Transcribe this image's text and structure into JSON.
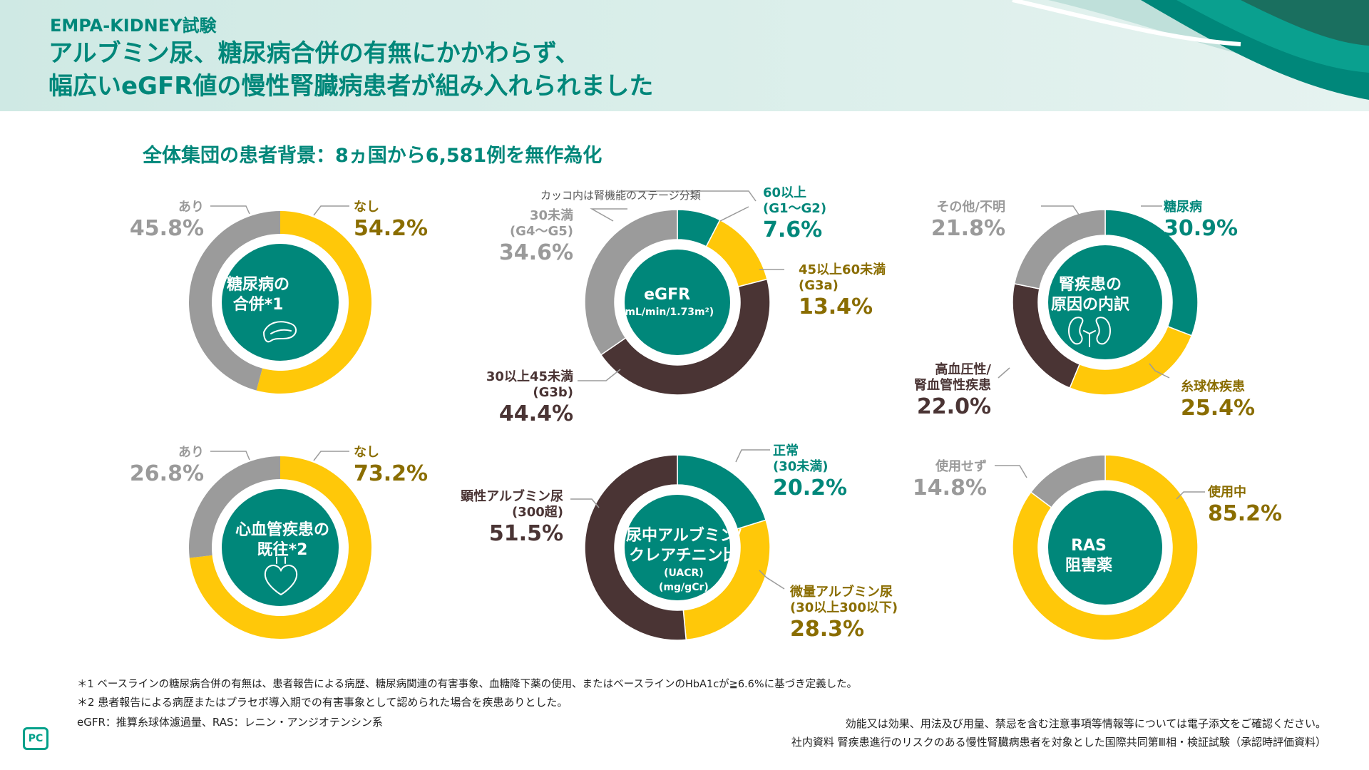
{
  "header": {
    "trial": "EMPA-KIDNEY試験",
    "headline_line1": "アルブミン尿、糖尿病合併の有無にかかわらず、",
    "headline_line2": "幅広いeGFR値の慢性腎臓病患者が組み入れられました"
  },
  "subtitle": "全体集団の患者背景：8ヵ国から6,581例を無作為化",
  "colors": {
    "teal": "#00877a",
    "yellow": "#ffc809",
    "gray": "#9b9b9b",
    "brown": "#4a3434",
    "center": "#00877a"
  },
  "chart_data": [
    {
      "type": "pie",
      "title": "糖尿病の合併*1",
      "center_line1": "糖尿病の",
      "center_line2": "合併*1",
      "icon": "pancreas-icon",
      "slices": [
        {
          "name": "なし",
          "value": 54.2,
          "pct": "54.2%",
          "color": "yellow"
        },
        {
          "name": "あり",
          "value": 45.8,
          "pct": "45.8%",
          "color": "gray"
        }
      ]
    },
    {
      "type": "pie",
      "title": "eGFR (mL/min/1.73m²)",
      "center_line1": "eGFR",
      "center_line2": "(mL/min/1.73m²)",
      "note": "カッコ内は腎機能のステージ分類",
      "slices": [
        {
          "name": "60以上",
          "sub": "(G1〜G2)",
          "value": 7.6,
          "pct": "7.6%",
          "color": "teal"
        },
        {
          "name": "45以上60未満",
          "sub": "(G3a)",
          "value": 13.4,
          "pct": "13.4%",
          "color": "yellow"
        },
        {
          "name": "30以上45未満",
          "sub": "(G3b)",
          "value": 44.4,
          "pct": "44.4%",
          "color": "brown"
        },
        {
          "name": "30未満",
          "sub": "(G4〜G5)",
          "value": 34.6,
          "pct": "34.6%",
          "color": "gray"
        }
      ]
    },
    {
      "type": "pie",
      "title": "腎疾患の原因の内訳",
      "center_line1": "腎疾患の",
      "center_line2": "原因の内訳",
      "icon": "kidney-icon",
      "slices": [
        {
          "name": "糖尿病",
          "value": 30.9,
          "pct": "30.9%",
          "color": "teal"
        },
        {
          "name": "糸球体疾患",
          "value": 25.4,
          "pct": "25.4%",
          "color": "yellow"
        },
        {
          "name": "高血圧性/",
          "sub": "腎血管性疾患",
          "value": 22.0,
          "pct": "22.0%",
          "color": "brown"
        },
        {
          "name": "その他/不明",
          "value": 21.8,
          "pct": "21.8%",
          "color": "gray"
        }
      ]
    },
    {
      "type": "pie",
      "title": "心血管疾患の既往*2",
      "center_line1": "心血管疾患の",
      "center_line2": "既往*2",
      "icon": "heart-icon",
      "slices": [
        {
          "name": "なし",
          "value": 73.2,
          "pct": "73.2%",
          "color": "yellow"
        },
        {
          "name": "あり",
          "value": 26.8,
          "pct": "26.8%",
          "color": "gray"
        }
      ]
    },
    {
      "type": "pie",
      "title": "尿中アルブミン/クレアチニン比 (UACR) (mg/gCr)",
      "center_line1": "尿中アルブミン/",
      "center_line2": "クレアチニン比",
      "center_line3": "(UACR)",
      "center_line4": "(mg/gCr)",
      "slices": [
        {
          "name": "正常",
          "sub": "(30未満)",
          "value": 20.2,
          "pct": "20.2%",
          "color": "teal"
        },
        {
          "name": "微量アルブミン尿",
          "sub": "(30以上300以下)",
          "value": 28.3,
          "pct": "28.3%",
          "color": "yellow"
        },
        {
          "name": "顕性アルブミン尿",
          "sub": "(300超)",
          "value": 51.5,
          "pct": "51.5%",
          "color": "brown"
        }
      ]
    },
    {
      "type": "pie",
      "title": "RAS阻害薬",
      "center_line1": "RAS",
      "center_line2": "阻害薬",
      "slices": [
        {
          "name": "使用中",
          "value": 85.2,
          "pct": "85.2%",
          "color": "yellow"
        },
        {
          "name": "使用せず",
          "value": 14.8,
          "pct": "14.8%",
          "color": "gray"
        }
      ]
    }
  ],
  "footnotes": {
    "fn1": "＊1 ベースラインの糖尿病合併の有無は、患者報告による病歴、糖尿病関連の有害事象、血糖降下薬の使用、またはベースラインのHbA1cが≧6.6%に基づき定義した。",
    "fn2": "＊2 患者報告による病歴またはプラセボ導入期での有害事象として認められた場合を疾患ありとした。",
    "abbr": "eGFR：推算糸球体濾過量、RAS：レニン・アンジオテンシン系",
    "notice": "効能又は効果、用法及び用量、禁忌を含む注意事項等情報等については電子添文をご確認ください。",
    "source": "社内資料 腎疾患進行のリスクのある慢性腎臓病患者を対象とした国際共同第Ⅲ相・検証試験（承認時評価資料）",
    "logo": "PC"
  }
}
